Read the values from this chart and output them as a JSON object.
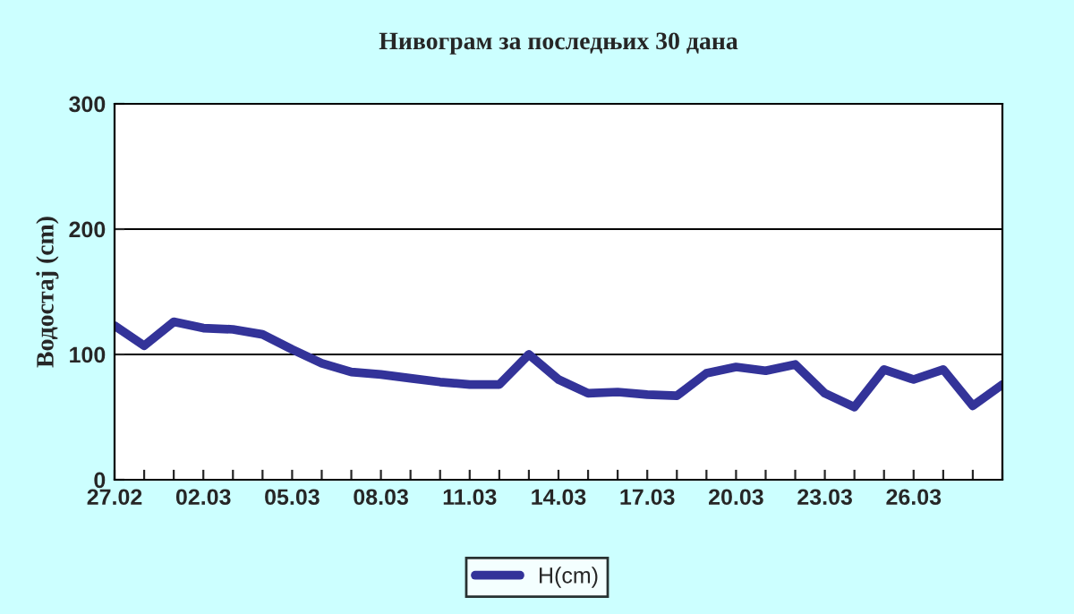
{
  "chart_data": {
    "type": "line",
    "title": "Нивограм за последњих 30 дана",
    "ylabel": "Водостај (cm)",
    "categories": [
      "27.02",
      null,
      null,
      "02.03",
      null,
      null,
      "05.03",
      null,
      null,
      "08.03",
      null,
      null,
      "11.03",
      null,
      null,
      "14.03",
      null,
      null,
      "17.03",
      null,
      null,
      "20.03",
      null,
      null,
      "23.03",
      null,
      null,
      "26.03",
      null,
      null,
      null
    ],
    "series": [
      {
        "name": "H(cm)",
        "color": "#333399",
        "values": [
          123,
          107,
          126,
          121,
          120,
          116,
          104,
          93,
          86,
          84,
          81,
          78,
          76,
          76,
          100,
          80,
          69,
          70,
          68,
          67,
          85,
          90,
          87,
          92,
          69,
          58,
          88,
          80,
          88,
          59,
          76
        ]
      }
    ],
    "ylim": [
      0,
      300
    ],
    "yticks": [
      0,
      100,
      200,
      300
    ],
    "grid": "y",
    "legend": "bottom",
    "marker": "none",
    "line_style": "solid"
  }
}
